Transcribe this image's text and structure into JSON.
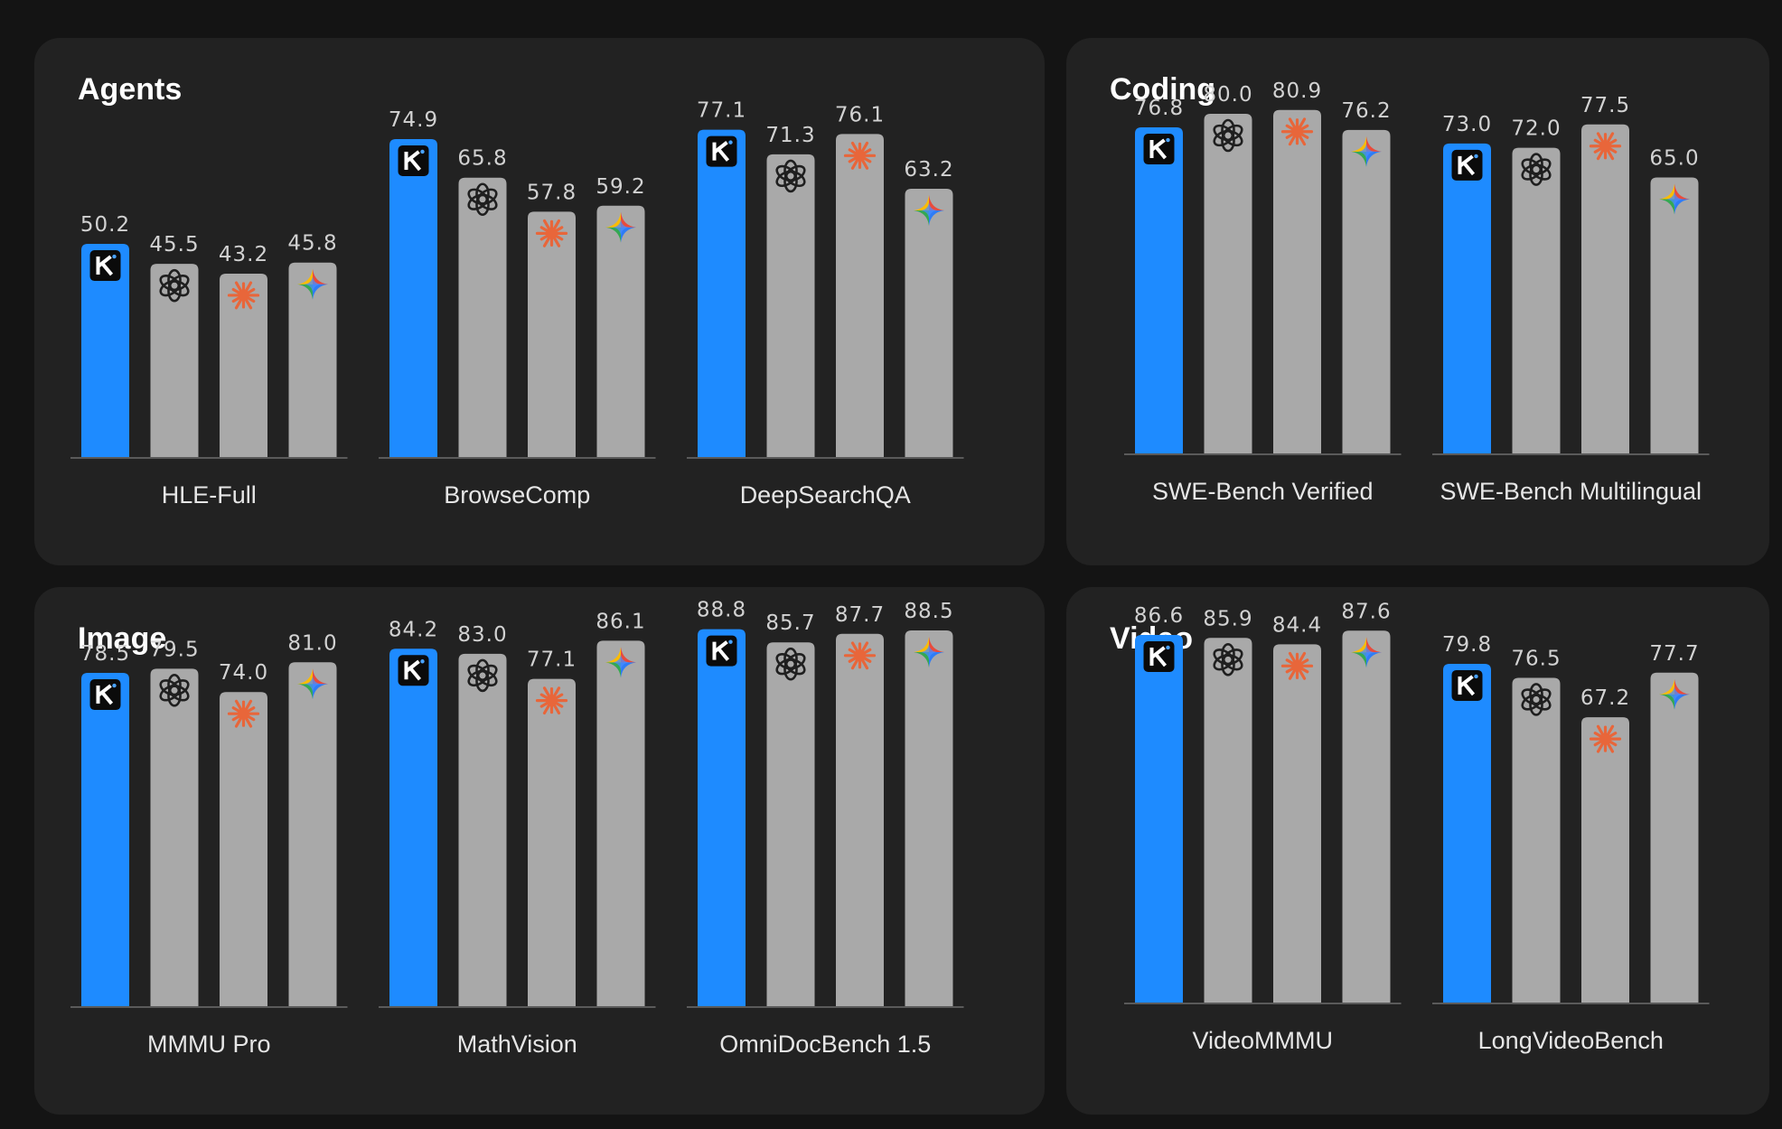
{
  "colors": {
    "background": "#141414",
    "panel": "#222222",
    "highlight_bar": "#1e8bff",
    "other_bar": "#a9a9a9",
    "axis": "#5a5a5a"
  },
  "model_icons": [
    "kimi-k-icon",
    "openai-icon",
    "claude-icon",
    "gemini-icon"
  ],
  "chart_data": [
    {
      "type": "bar",
      "title": "Agents",
      "categories": [
        "HLE-Full",
        "BrowseComp",
        "DeepSearchQA"
      ],
      "series": [
        {
          "values": [
            50.2,
            74.9,
            77.1
          ]
        },
        {
          "values": [
            45.5,
            65.8,
            71.3
          ]
        },
        {
          "values": [
            43.2,
            57.8,
            76.1
          ]
        },
        {
          "values": [
            45.8,
            59.2,
            63.2
          ]
        }
      ],
      "ylim": [
        0,
        100
      ],
      "grid": false,
      "legend": "none"
    },
    {
      "type": "bar",
      "title": "Coding",
      "categories": [
        "SWE-Bench Verified",
        "SWE-Bench Multilingual"
      ],
      "series": [
        {
          "values": [
            76.8,
            73.0
          ]
        },
        {
          "values": [
            80.0,
            72.0
          ]
        },
        {
          "values": [
            80.9,
            77.5
          ]
        },
        {
          "values": [
            76.2,
            65.0
          ]
        }
      ],
      "ylim": [
        0,
        100
      ],
      "grid": false,
      "legend": "none"
    },
    {
      "type": "bar",
      "title": "Image",
      "categories": [
        "MMMU Pro",
        "MathVision",
        "OmniDocBench 1.5"
      ],
      "series": [
        {
          "values": [
            78.5,
            84.2,
            88.8
          ]
        },
        {
          "values": [
            79.5,
            83.0,
            85.7
          ]
        },
        {
          "values": [
            74.0,
            77.1,
            87.7
          ]
        },
        {
          "values": [
            81.0,
            86.1,
            88.5
          ]
        }
      ],
      "ylim": [
        0,
        100
      ],
      "grid": false,
      "legend": "none"
    },
    {
      "type": "bar",
      "title": "Video",
      "categories": [
        "VideoMMMU",
        "LongVideoBench"
      ],
      "series": [
        {
          "values": [
            86.6,
            79.8
          ]
        },
        {
          "values": [
            85.9,
            76.5
          ]
        },
        {
          "values": [
            84.4,
            67.2
          ]
        },
        {
          "values": [
            87.6,
            77.7
          ]
        }
      ],
      "ylim": [
        0,
        100
      ],
      "grid": false,
      "legend": "none"
    }
  ]
}
